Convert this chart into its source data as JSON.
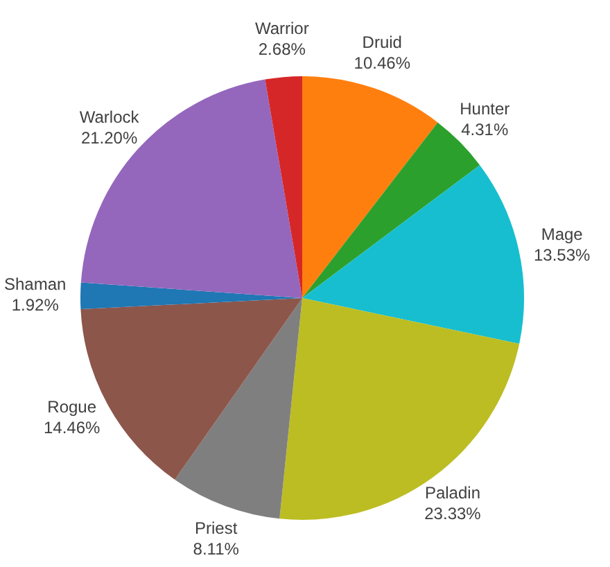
{
  "chart_data": {
    "type": "pie",
    "categories": [
      "Druid",
      "Hunter",
      "Mage",
      "Paladin",
      "Priest",
      "Rogue",
      "Shaman",
      "Warlock",
      "Warrior"
    ],
    "values": [
      10.46,
      4.31,
      13.53,
      23.33,
      8.11,
      14.46,
      1.92,
      21.2,
      2.68
    ],
    "colors": [
      "#ff7f0e",
      "#2ca02c",
      "#17becf",
      "#bcbd22",
      "#7f7f7f",
      "#8c564b",
      "#1f77b4",
      "#9467bd",
      "#d62728"
    ],
    "value_labels": [
      "10.46%",
      "4.31%",
      "13.53%",
      "23.33%",
      "8.11%",
      "14.46%",
      "1.92%",
      "21.20%",
      "2.68%"
    ],
    "legend": false
  }
}
